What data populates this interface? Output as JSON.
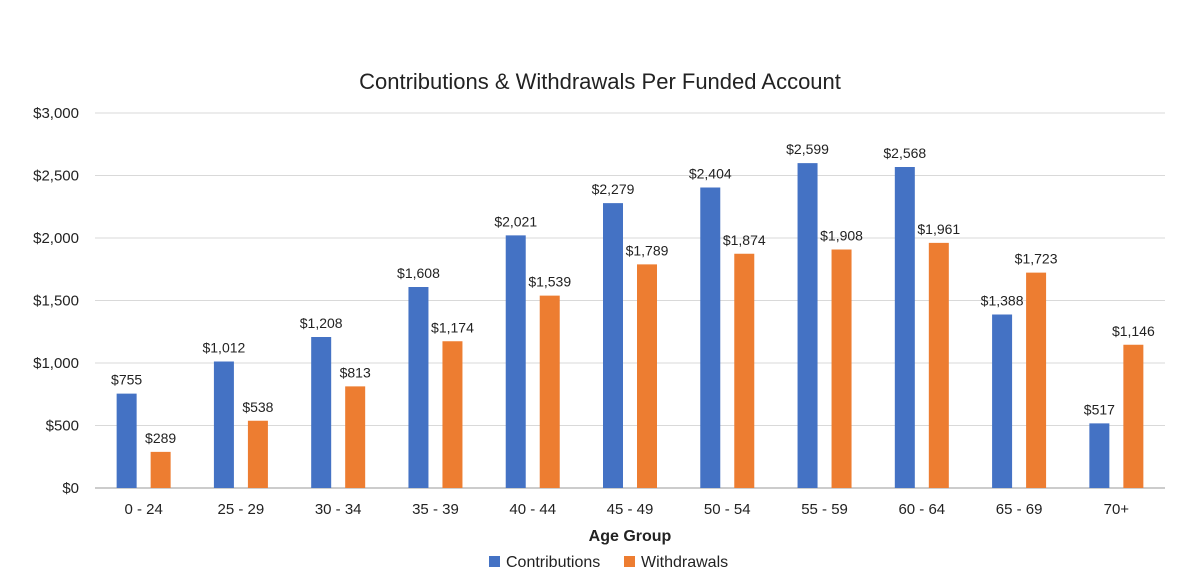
{
  "chart_data": {
    "type": "bar",
    "title": "Contributions & Withdrawals Per Funded Account",
    "xlabel": "Age Group",
    "ylabel": "",
    "categories": [
      "0 - 24",
      "25 - 29",
      "30 - 34",
      "35 - 39",
      "40 - 44",
      "45 - 49",
      "50 - 54",
      "55 - 59",
      "60 - 64",
      "65 - 69",
      "70+"
    ],
    "series": [
      {
        "name": "Contributions",
        "color": "#4472C4",
        "values": [
          755,
          1012,
          1208,
          1608,
          2021,
          2279,
          2404,
          2599,
          2568,
          1388,
          517
        ],
        "labels": [
          "$755",
          "$1,012",
          "$1,208",
          "$1,608",
          "$2,021",
          "$2,279",
          "$2,404",
          "$2,599",
          "$2,568",
          "$1,388",
          "$517"
        ]
      },
      {
        "name": "Withdrawals",
        "color": "#ED7D31",
        "values": [
          289,
          538,
          813,
          1174,
          1539,
          1789,
          1874,
          1908,
          1961,
          1723,
          1146
        ],
        "labels": [
          "$289",
          "$538",
          "$813",
          "$1,174",
          "$1,539",
          "$1,789",
          "$1,874",
          "$1,908",
          "$1,961",
          "$1,723",
          "$1,146"
        ]
      }
    ],
    "ylim": [
      0,
      3000
    ],
    "yticks": [
      0,
      500,
      1000,
      1500,
      2000,
      2500,
      3000
    ],
    "ytick_labels": [
      "$0",
      "$500",
      "$1,000",
      "$1,500",
      "$2,000",
      "$2,500",
      "$3,000"
    ],
    "grid": true,
    "legend_position": "bottom"
  }
}
